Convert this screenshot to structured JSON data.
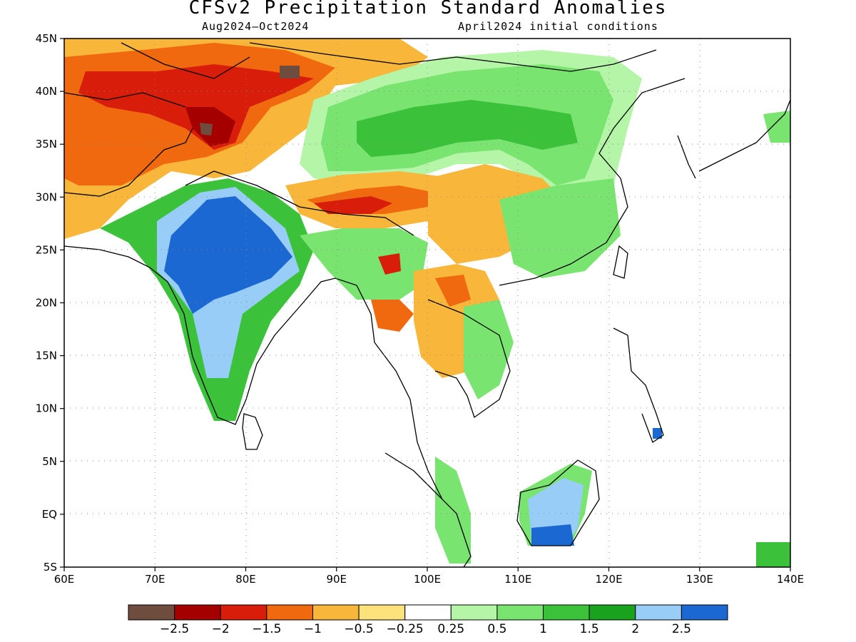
{
  "title": "CFSv2 Precipitation Standard Anomalies",
  "subtitle_left": "Aug2024–Oct2024",
  "subtitle_right": "April2024 initial conditions",
  "lon_ticks": [
    "60E",
    "70E",
    "80E",
    "90E",
    "100E",
    "110E",
    "120E",
    "130E",
    "140E"
  ],
  "lat_ticks": [
    "45N",
    "40N",
    "35N",
    "30N",
    "25N",
    "20N",
    "15N",
    "10N",
    "5N",
    "EQ",
    "5S"
  ],
  "colorbar": {
    "colors": [
      "#6e4c3e",
      "#a50000",
      "#d81d0a",
      "#f0690f",
      "#f8b73a",
      "#fde27b",
      "#ffffff",
      "#b4f5a8",
      "#79e46f",
      "#3bc23a",
      "#18a21d",
      "#98cdf7",
      "#1c68d3"
    ],
    "labels": [
      "−2.5",
      "−2",
      "−1.5",
      "−1",
      "−0.5",
      "−0.25",
      "0.25",
      "0.5",
      "1",
      "1.5",
      "2",
      "2.5"
    ]
  },
  "map_extent": {
    "lon": [
      60,
      140
    ],
    "lat": [
      -5,
      45
    ]
  },
  "anomaly_regions": [
    {
      "name": "afghanistan-dry",
      "color": "#f0690f",
      "lon": [
        60,
        78
      ],
      "lat": [
        30,
        44
      ]
    },
    {
      "name": "pakistan-dry",
      "color": "#f8b73a",
      "lon": [
        60,
        70
      ],
      "lat": [
        25,
        33
      ]
    },
    {
      "name": "karakoram-very-dry",
      "color": "#d81d0a",
      "lon": [
        72,
        82
      ],
      "lat": [
        34,
        40
      ]
    },
    {
      "name": "tarim-dry",
      "color": "#f0690f",
      "lon": [
        80,
        92
      ],
      "lat": [
        37,
        42
      ]
    },
    {
      "name": "tibet-north-wet",
      "color": "#79e46f",
      "lon": [
        90,
        115
      ],
      "lat": [
        32,
        40
      ]
    },
    {
      "name": "tibet-south-dry",
      "color": "#f8b73a",
      "lon": [
        85,
        100
      ],
      "lat": [
        28,
        32
      ]
    },
    {
      "name": "india-very-wet",
      "color": "#1c68d3",
      "lon": [
        72,
        84
      ],
      "lat": [
        20,
        29
      ]
    },
    {
      "name": "india-south-wet",
      "color": "#3bc23a",
      "lon": [
        73,
        81
      ],
      "lat": [
        11,
        20
      ]
    },
    {
      "name": "indochina-dry",
      "color": "#f8b73a",
      "lon": [
        97,
        106
      ],
      "lat": [
        14,
        24
      ]
    },
    {
      "name": "south-china-wet",
      "color": "#79e46f",
      "lon": [
        104,
        121
      ],
      "lat": [
        20,
        30
      ]
    },
    {
      "name": "borneo-very-wet",
      "color": "#98cdf7",
      "lon": [
        110,
        118
      ],
      "lat": [
        -3,
        4
      ]
    }
  ]
}
